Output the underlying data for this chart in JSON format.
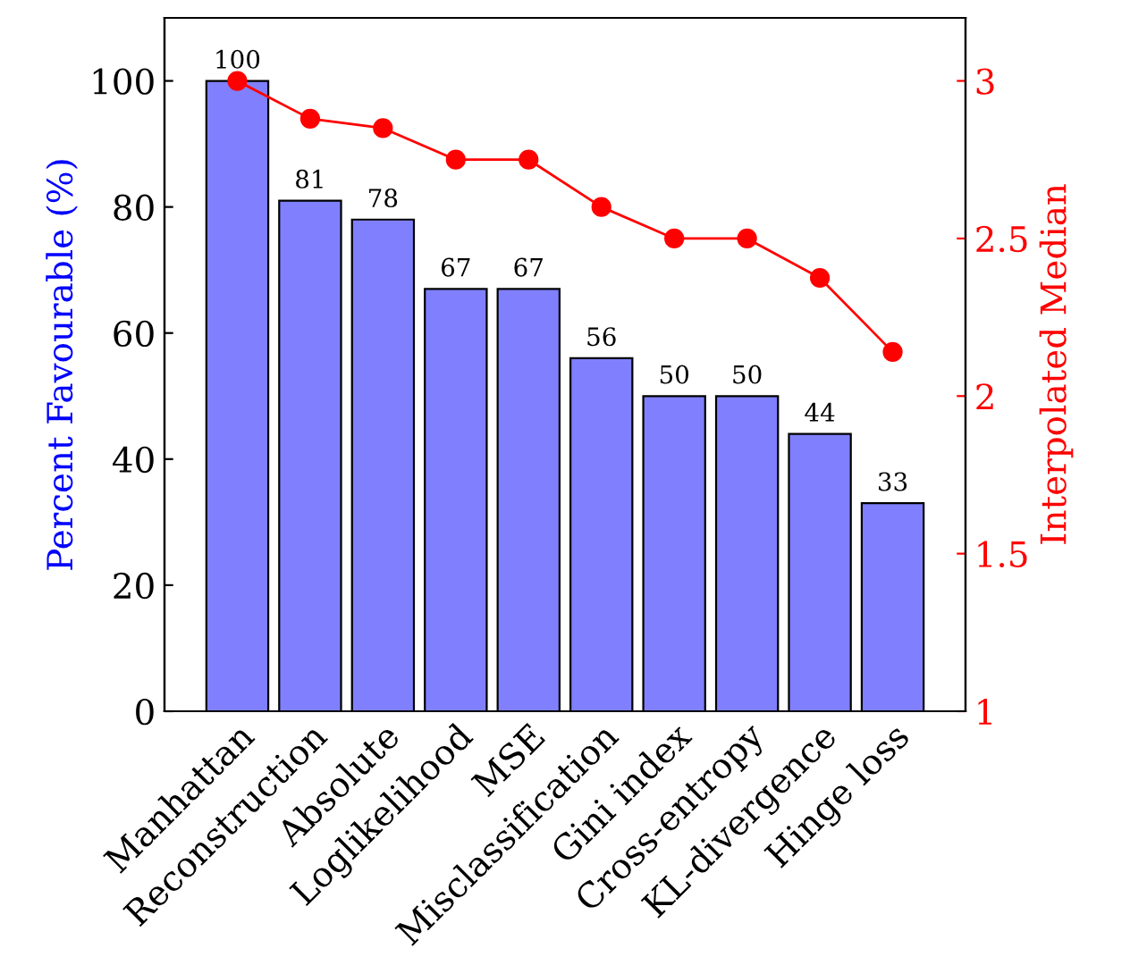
{
  "chart_data": {
    "type": "bar",
    "ylabel": "Percent Favourable (%)",
    "y2label": "Interpolated Median",
    "categories": [
      "Manhattan",
      "Reconstruction",
      "Absolute",
      "Loglikelihood",
      "MSE",
      "Misclassification",
      "Gini index",
      "Cross-entropy",
      "KL-divergence",
      "Hinge loss"
    ],
    "series": [
      {
        "color": "#8080ff",
        "values": [
          100,
          81,
          78,
          67,
          67,
          56,
          50,
          50,
          44,
          33
        ],
        "value_labels": [
          "100",
          "81",
          "78",
          "67",
          "67",
          "56",
          "50",
          "50",
          "44",
          "33"
        ]
      },
      {
        "type": "line",
        "axis": "y2",
        "color": "#ff0000",
        "marker": "circle",
        "values": [
          3.0,
          2.88,
          2.85,
          2.75,
          2.75,
          2.6,
          2.5,
          2.5,
          2.375,
          2.14
        ]
      }
    ],
    "ylim": [
      0,
      110
    ],
    "yticks": [
      0,
      20,
      40,
      60,
      80,
      100
    ],
    "y2lim": [
      1,
      3.2
    ],
    "y2ticks": [
      1,
      1.5,
      2,
      2.5,
      3
    ],
    "grid": false,
    "legend": false
  }
}
